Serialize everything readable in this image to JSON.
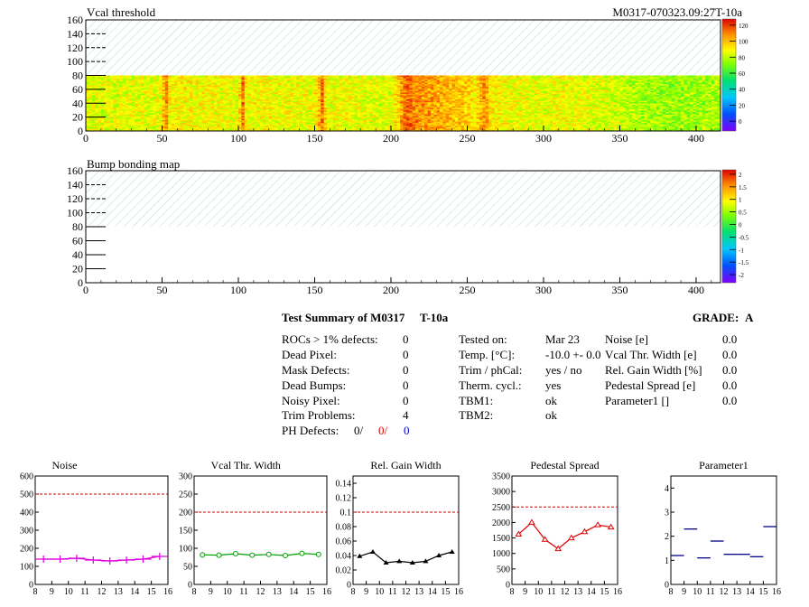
{
  "module_label": "M0317-070323.09:27T-10a",
  "panel1": {
    "title": "Vcal threshold",
    "y_ticks": [
      "0",
      "20",
      "40",
      "60",
      "80",
      "100",
      "120",
      "140",
      "160"
    ],
    "x_ticks": [
      "0",
      "50",
      "100",
      "150",
      "200",
      "250",
      "300",
      "350",
      "400"
    ],
    "colorbar_ticks": [
      "0",
      "20",
      "40",
      "60",
      "80",
      "100",
      "120"
    ]
  },
  "panel2": {
    "title": "Bump bonding map",
    "y_ticks": [
      "0",
      "20",
      "40",
      "60",
      "80",
      "100",
      "120",
      "140",
      "160"
    ],
    "x_ticks": [
      "0",
      "50",
      "100",
      "150",
      "200",
      "250",
      "300",
      "350",
      "400"
    ],
    "colorbar_ticks": [
      "-2",
      "-1.5",
      "-1",
      "-0.5",
      "0",
      "0.5",
      "1",
      "1.5",
      "2"
    ]
  },
  "summary": {
    "title": "Test Summary of M0317",
    "tag": "T-10a",
    "grade_label": "GRADE:",
    "grade": "A",
    "left": [
      {
        "label": "ROCs > 1% defects:",
        "value": "0"
      },
      {
        "label": "Dead Pixel:",
        "value": "0"
      },
      {
        "label": "Mask Defects:",
        "value": "0"
      },
      {
        "label": "Dead Bumps:",
        "value": "0"
      },
      {
        "label": "Noisy Pixel:",
        "value": "0"
      },
      {
        "label": "Trim Problems:",
        "value": "4"
      }
    ],
    "ph_label": "PH Defects:",
    "ph_values": [
      "0/",
      "0/",
      "0"
    ],
    "ph_colors": [
      "#000000",
      "#e00000",
      "#0000d0"
    ],
    "middle": [
      {
        "label": "Tested on:",
        "value": "Mar 23"
      },
      {
        "label": "Temp. [°C]:",
        "value": "-10.0 +- 0.0"
      },
      {
        "label": "Trim / phCal:",
        "value": "yes / no"
      },
      {
        "label": "Therm. cycl.:",
        "value": "yes"
      },
      {
        "label": "TBM1:",
        "value": "ok"
      },
      {
        "label": "TBM2:",
        "value": "ok"
      }
    ],
    "right": [
      {
        "label": "Noise [e]",
        "value": "0.0"
      },
      {
        "label": "Vcal Thr. Width [e]",
        "value": "0.0"
      },
      {
        "label": "Rel. Gain Width [%]",
        "value": "0.0"
      },
      {
        "label": "Pedestal Spread [e]",
        "value": "0.0"
      },
      {
        "label": "Parameter1 []",
        "value": "0.0"
      }
    ]
  },
  "chart_data": [
    {
      "type": "heatmap",
      "title": "Vcal threshold",
      "xlim": [
        0,
        416
      ],
      "ylim": [
        0,
        160
      ],
      "filled_rows": [
        0,
        80
      ],
      "hatched_rows": [
        80,
        160
      ],
      "z_range": [
        0,
        130
      ],
      "column_profile_x": [
        0,
        50,
        52,
        55,
        100,
        103,
        105,
        150,
        155,
        158,
        200,
        208,
        212,
        215,
        250,
        255,
        262,
        265,
        300,
        310,
        350,
        360,
        380,
        400,
        416
      ],
      "column_profile_z": [
        90,
        92,
        118,
        95,
        92,
        115,
        94,
        92,
        116,
        93,
        90,
        112,
        118,
        112,
        102,
        96,
        112,
        96,
        90,
        94,
        88,
        84,
        80,
        82,
        84
      ]
    },
    {
      "type": "heatmap",
      "title": "Bump bonding map",
      "xlim": [
        0,
        416
      ],
      "ylim": [
        0,
        160
      ],
      "filled_rows": [
        0,
        80
      ],
      "hatched_rows": [
        80,
        160
      ],
      "z_range": [
        -2,
        2
      ],
      "values": "empty"
    },
    {
      "type": "line",
      "title": "Noise",
      "color": "#e000e0",
      "marker": "cross",
      "x": [
        8.5,
        9.5,
        10.5,
        11.5,
        12.5,
        13.5,
        14.5,
        15.5
      ],
      "y": [
        140,
        140,
        145,
        135,
        130,
        135,
        140,
        155
      ],
      "xlim": [
        8,
        16
      ],
      "ylim": [
        0,
        600
      ],
      "x_ticks": [
        "8",
        "9",
        "10",
        "11",
        "12",
        "13",
        "14",
        "15",
        "16"
      ],
      "y_ticks": [
        "0",
        "100",
        "200",
        "300",
        "400",
        "500",
        "600"
      ],
      "threshold": 500
    },
    {
      "type": "line",
      "title": "Vcal Thr. Width",
      "color": "#00a000",
      "marker": "circle",
      "x": [
        8.5,
        9.5,
        10.5,
        11.5,
        12.5,
        13.5,
        14.5,
        15.5
      ],
      "y": [
        82,
        81,
        85,
        81,
        83,
        80,
        86,
        83
      ],
      "xlim": [
        8,
        16
      ],
      "ylim": [
        0,
        300
      ],
      "x_ticks": [
        "8",
        "9",
        "10",
        "11",
        "12",
        "13",
        "14",
        "15",
        "16"
      ],
      "y_ticks": [
        "0",
        "50",
        "100",
        "150",
        "200",
        "250",
        "300"
      ],
      "threshold": 200
    },
    {
      "type": "line",
      "title": "Rel. Gain Width",
      "color": "#000000",
      "marker": "triangle",
      "x": [
        8.5,
        9.5,
        10.5,
        11.5,
        12.5,
        13.5,
        14.5,
        15.5
      ],
      "y": [
        0.039,
        0.045,
        0.03,
        0.032,
        0.03,
        0.032,
        0.04,
        0.045
      ],
      "xlim": [
        8,
        16
      ],
      "ylim": [
        0,
        0.15
      ],
      "x_ticks": [
        "8",
        "9",
        "10",
        "11",
        "12",
        "13",
        "14",
        "15",
        "16"
      ],
      "y_ticks": [
        "0",
        "0.02",
        "0.04",
        "0.06",
        "0.08",
        "0.1",
        "0.12",
        "0.14"
      ],
      "threshold": 0.1
    },
    {
      "type": "line",
      "title": "Pedestal Spread",
      "color": "#e00000",
      "marker": "triangle-open",
      "x": [
        8.5,
        9.5,
        10.5,
        11.5,
        12.5,
        13.5,
        14.5,
        15.5
      ],
      "y": [
        1620,
        2000,
        1450,
        1150,
        1500,
        1700,
        1920,
        1850
      ],
      "xlim": [
        8,
        16
      ],
      "ylim": [
        0,
        3500
      ],
      "x_ticks": [
        "8",
        "9",
        "10",
        "11",
        "12",
        "13",
        "14",
        "15",
        "16"
      ],
      "y_ticks": [
        "0",
        "500",
        "1000",
        "1500",
        "2000",
        "2500",
        "3000",
        "3500"
      ],
      "threshold": 2500
    },
    {
      "type": "scatter",
      "title": "Parameter1",
      "color": "#00008b",
      "marker": "hbar",
      "x": [
        8.5,
        9.5,
        10.5,
        11.5,
        12.5,
        13.5,
        14.5,
        15.5
      ],
      "y": [
        1.2,
        2.3,
        1.1,
        1.8,
        1.25,
        1.25,
        1.15,
        2.4
      ],
      "xlim": [
        8,
        16
      ],
      "ylim": [
        0,
        4.5
      ],
      "x_ticks": [
        "8",
        "9",
        "10",
        "11",
        "12",
        "13",
        "14",
        "15",
        "16"
      ],
      "y_ticks": [
        "0",
        "1",
        "2",
        "3",
        "4"
      ]
    }
  ]
}
